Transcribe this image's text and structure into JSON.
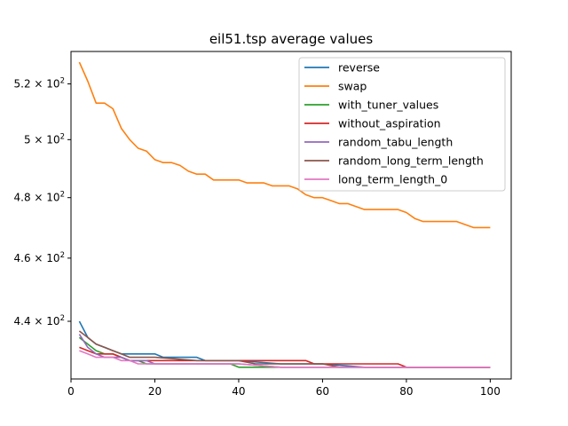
{
  "chart_data": {
    "type": "line",
    "title": "eil51.tsp average values",
    "xlabel": "",
    "ylabel": "",
    "xlim": [
      0,
      105
    ],
    "ylim_log": [
      422.5,
      532
    ],
    "yscale": "log",
    "x_ticks": [
      0,
      20,
      40,
      60,
      80,
      100
    ],
    "x_tick_labels": [
      "0",
      "20",
      "40",
      "60",
      "80",
      "100"
    ],
    "y_ticks": [
      440,
      460,
      480,
      500,
      520
    ],
    "y_tick_labels": [
      {
        "mantissa": "4.4",
        "sep": " × 10",
        "exp": "2"
      },
      {
        "mantissa": "4.6",
        "sep": " × 10",
        "exp": "2"
      },
      {
        "mantissa": "4.8",
        "sep": " × 10",
        "exp": "2"
      },
      {
        "mantissa": "5",
        "sep": " × 10",
        "exp": "2"
      },
      {
        "mantissa": "5.2",
        "sep": " × 10",
        "exp": "2"
      }
    ],
    "legend_position": "upper-right",
    "series": [
      {
        "name": "reverse",
        "color": "#1f77b4",
        "x": [
          2,
          4,
          6,
          8,
          10,
          12,
          14,
          16,
          18,
          20,
          22,
          24,
          26,
          28,
          30,
          32,
          40,
          50,
          60,
          70,
          80,
          90,
          100
        ],
        "y": [
          440,
          435,
          433,
          432,
          431,
          430,
          430,
          430,
          430,
          430,
          429,
          429,
          429,
          429,
          429,
          428,
          428,
          427,
          427,
          426,
          426,
          426,
          426
        ]
      },
      {
        "name": "swap",
        "color": "#ff7f0e",
        "x": [
          2,
          4,
          6,
          8,
          10,
          12,
          14,
          16,
          18,
          20,
          22,
          24,
          26,
          28,
          30,
          32,
          34,
          36,
          38,
          40,
          42,
          44,
          46,
          48,
          50,
          52,
          54,
          56,
          58,
          60,
          62,
          64,
          66,
          68,
          70,
          72,
          74,
          76,
          78,
          80,
          82,
          84,
          86,
          88,
          90,
          92,
          94,
          96,
          98,
          100
        ],
        "y": [
          528,
          521,
          513,
          513,
          511,
          504,
          500,
          497,
          496,
          493,
          492,
          492,
          491,
          489,
          488,
          488,
          486,
          486,
          486,
          486,
          485,
          485,
          485,
          484,
          484,
          484,
          483,
          481,
          480,
          480,
          479,
          478,
          478,
          477,
          476,
          476,
          476,
          476,
          476,
          475,
          473,
          472,
          472,
          472,
          472,
          472,
          471,
          470,
          470,
          470
        ]
      },
      {
        "name": "with_tuner_values",
        "color": "#2ca02c",
        "x": [
          2,
          4,
          6,
          8,
          10,
          12,
          14,
          16,
          18,
          20,
          30,
          38,
          40,
          50,
          60,
          70,
          80,
          90,
          100
        ],
        "y": [
          435,
          433,
          431,
          430,
          430,
          429,
          428,
          428,
          427,
          427,
          427,
          427,
          426,
          426,
          426,
          426,
          426,
          426,
          426
        ]
      },
      {
        "name": "without_aspiration",
        "color": "#d62728",
        "x": [
          2,
          4,
          6,
          8,
          10,
          12,
          14,
          20,
          30,
          40,
          50,
          56,
          58,
          70,
          78,
          80,
          90,
          100
        ],
        "y": [
          432,
          431,
          430,
          430,
          430,
          429,
          428,
          428,
          428,
          428,
          428,
          428,
          427,
          427,
          427,
          426,
          426,
          426
        ]
      },
      {
        "name": "random_tabu_length",
        "color": "#9467bd",
        "x": [
          2,
          4,
          6,
          8,
          10,
          12,
          14,
          16,
          18,
          20,
          30,
          40,
          50,
          60,
          70,
          80,
          90,
          100
        ],
        "y": [
          436,
          432,
          430,
          429,
          429,
          429,
          428,
          428,
          428,
          427,
          427,
          427,
          426,
          426,
          426,
          426,
          426,
          426
        ]
      },
      {
        "name": "random_long_term_length",
        "color": "#8c564b",
        "x": [
          2,
          4,
          6,
          8,
          10,
          12,
          14,
          16,
          18,
          20,
          30,
          40,
          44,
          50,
          60,
          64,
          70,
          80,
          90,
          100
        ],
        "y": [
          437,
          435,
          433,
          432,
          431,
          430,
          429,
          429,
          429,
          429,
          428,
          428,
          427,
          427,
          427,
          426,
          426,
          426,
          426,
          426
        ]
      },
      {
        "name": "long_term_length_0",
        "color": "#e377c2",
        "x": [
          2,
          4,
          6,
          8,
          10,
          12,
          14,
          16,
          18,
          20,
          30,
          40,
          50,
          60,
          70,
          80,
          90,
          100
        ],
        "y": [
          431,
          430,
          429,
          429,
          429,
          428,
          428,
          427,
          427,
          427,
          427,
          427,
          426,
          426,
          426,
          426,
          426,
          426
        ]
      }
    ]
  }
}
